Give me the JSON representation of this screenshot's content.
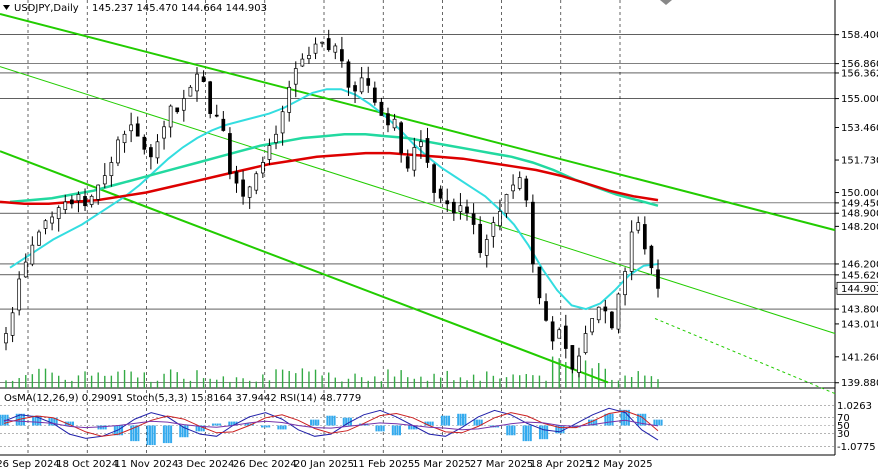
{
  "header": {
    "symbol_tf": "USDJPY,Daily",
    "ohlc": "145.237 145.470 144.664 144.903"
  },
  "indicator_header": "OsMA(12,26,9) 0.29091  Stoch(5,3,3) 15.8164 37.9442  RSI(14) 48.7779",
  "colors": {
    "background": "#ffffff",
    "candle_bull": "#000000",
    "candle_bear": "#000000",
    "ema_fast": "#33dde0",
    "ema_mid": "#22d9a0",
    "ema_slow": "#dd0000",
    "channel": "#22cc00",
    "volume": "#33aa44",
    "osma": "#33aaee",
    "stoch_main": "#2222aa",
    "stoch_signal": "#cc2222",
    "rsi": "#7733aa",
    "current_price_box": "#ffffff"
  },
  "chart_data": {
    "type": "candlestick",
    "title": "",
    "xlabel": "",
    "ylabel": "",
    "x_ticks": [
      "26 Sep 2024",
      "18 Oct 2024",
      "11 Nov 2024",
      "3 Dec 2024",
      "26 Dec 2024",
      "20 Jan 2025",
      "11 Feb 2025",
      "5 Mar 2025",
      "27 Mar 2025",
      "18 Apr 2025",
      "12 May 2025"
    ],
    "y_ticks": [
      "158.400",
      "156.860",
      "156.362",
      "155.000",
      "153.460",
      "151.730",
      "150.000",
      "149.450",
      "148.900",
      "148.200",
      "146.200",
      "145.620",
      "144.903",
      "143.800",
      "143.010",
      "141.260",
      "139.880"
    ],
    "highlighted_levels": [
      158.4,
      156.86,
      156.362,
      155.0,
      149.45,
      148.9,
      146.2,
      145.62,
      143.8,
      139.88
    ],
    "current_price": 144.903,
    "ylim": [
      139.6,
      159.5
    ],
    "close_series": [
      142.5,
      143.6,
      145.4,
      146.3,
      147.2,
      147.9,
      148.5,
      148.7,
      149.2,
      149.5,
      149.4,
      149.9,
      149.3,
      149.8,
      150.4,
      150.9,
      151.6,
      152.8,
      153.1,
      153.6,
      153.0,
      152.3,
      151.9,
      152.7,
      153.5,
      154.6,
      154.3,
      155.0,
      155.6,
      156.3,
      155.9,
      154.2,
      154.1,
      153.3,
      151.0,
      150.5,
      149.8,
      150.3,
      151.0,
      151.6,
      152.5,
      153.1,
      154.3,
      155.6,
      156.6,
      157.1,
      157.3,
      157.9,
      158.0,
      157.6,
      157.8,
      157.0,
      155.6,
      155.4,
      156.1,
      155.7,
      154.8,
      154.1,
      153.6,
      153.9,
      152.1,
      151.3,
      152.4,
      152.7,
      151.6,
      150.0,
      149.7,
      149.4,
      148.9,
      149.3,
      148.9,
      148.3,
      146.8,
      147.5,
      148.4,
      149.0,
      149.9,
      150.4,
      150.8,
      149.6,
      146.2,
      144.4,
      143.2,
      142.1,
      142.7,
      141.7,
      140.6,
      141.3,
      142.5,
      143.3,
      143.9,
      143.7,
      142.8,
      144.6,
      145.8,
      147.9,
      148.4,
      147.0,
      146.0,
      144.9
    ],
    "series": [
      {
        "name": "EMA fast",
        "color_key": "ema_fast",
        "values": [
          146.0,
          146.5,
          147.0,
          147.5,
          147.9,
          148.3,
          148.8,
          149.3,
          149.8,
          150.4,
          151.1,
          151.8,
          152.4,
          152.9,
          153.3,
          153.6,
          153.8,
          154.0,
          154.2,
          154.5,
          154.9,
          155.3,
          155.5,
          155.5,
          155.2,
          154.7,
          154.1,
          153.4,
          152.6,
          151.9,
          151.3,
          150.8,
          150.3,
          149.8,
          149.1,
          148.3,
          147.2,
          145.9,
          144.8,
          144.0,
          143.8,
          144.1,
          144.8,
          145.6,
          146.1,
          146.2
        ]
      },
      {
        "name": "EMA mid",
        "color_key": "ema_mid",
        "values": [
          149.5,
          149.6,
          149.7,
          149.9,
          150.1,
          150.4,
          150.7,
          151.0,
          151.3,
          151.6,
          151.9,
          152.2,
          152.5,
          152.7,
          152.9,
          153.0,
          153.1,
          153.1,
          153.0,
          152.9,
          152.7,
          152.5,
          152.3,
          152.1,
          151.9,
          151.6,
          151.2,
          150.7,
          150.3,
          149.9,
          149.6,
          149.3
        ]
      },
      {
        "name": "EMA slow",
        "color_key": "ema_slow",
        "values": [
          149.5,
          149.4,
          149.4,
          149.5,
          149.6,
          149.8,
          150.0,
          150.3,
          150.6,
          150.9,
          151.2,
          151.5,
          151.7,
          151.9,
          152.0,
          152.1,
          152.1,
          152.0,
          151.9,
          151.8,
          151.6,
          151.4,
          151.2,
          150.9,
          150.5,
          150.1,
          149.8,
          149.6
        ]
      },
      {
        "name": "Channel upper",
        "color_key": "channel",
        "values": [
          159.5,
          148.0
        ]
      },
      {
        "name": "Channel middle",
        "color_key": "channel",
        "values": [
          156.7,
          142.5
        ]
      },
      {
        "name": "Channel lower",
        "color_key": "channel",
        "values": [
          152.2,
          139.9
        ]
      }
    ],
    "lower_panel": {
      "osma_levels": [
        "1.0263",
        "70",
        "50",
        "30",
        "-1.0775"
      ],
      "osma": [
        0.55,
        0.6,
        0.5,
        0.4,
        0.2,
        0.0,
        -0.2,
        -0.5,
        -0.8,
        -1.0,
        -0.9,
        -0.6,
        -0.3,
        0.1,
        0.2,
        0.1,
        -0.1,
        -0.2,
        0.0,
        0.3,
        0.5,
        0.4,
        0.1,
        -0.3,
        -0.5,
        -0.2,
        0.2,
        0.5,
        0.6,
        0.3,
        -0.1,
        -0.5,
        -0.8,
        -0.7,
        -0.4,
        -0.1,
        0.3,
        0.6,
        0.8,
        0.6,
        0.3
      ],
      "stoch_main": [
        60,
        75,
        70,
        55,
        30,
        20,
        25,
        40,
        65,
        80,
        70,
        45,
        30,
        25,
        50,
        70,
        80,
        65,
        40,
        25,
        30,
        55,
        75,
        85,
        70,
        50,
        30,
        25,
        45,
        70,
        85,
        75,
        55,
        40,
        35,
        55,
        75,
        90,
        80,
        40,
        16
      ],
      "stoch_signal": [
        55,
        65,
        72,
        68,
        52,
        35,
        25,
        30,
        45,
        62,
        72,
        65,
        48,
        33,
        35,
        50,
        68,
        75,
        62,
        43,
        32,
        38,
        55,
        73,
        78,
        68,
        50,
        35,
        33,
        48,
        68,
        80,
        72,
        55,
        45,
        45,
        60,
        78,
        84,
        70,
        38
      ],
      "rsi": [
        62,
        60,
        58,
        55,
        48,
        45,
        47,
        50,
        55,
        60,
        58,
        52,
        48,
        46,
        50,
        56,
        60,
        57,
        50,
        45,
        44,
        48,
        52,
        56,
        54,
        50,
        46,
        44,
        40,
        42,
        48,
        54,
        58,
        56,
        50,
        48,
        52,
        58,
        62,
        55,
        49
      ]
    }
  }
}
